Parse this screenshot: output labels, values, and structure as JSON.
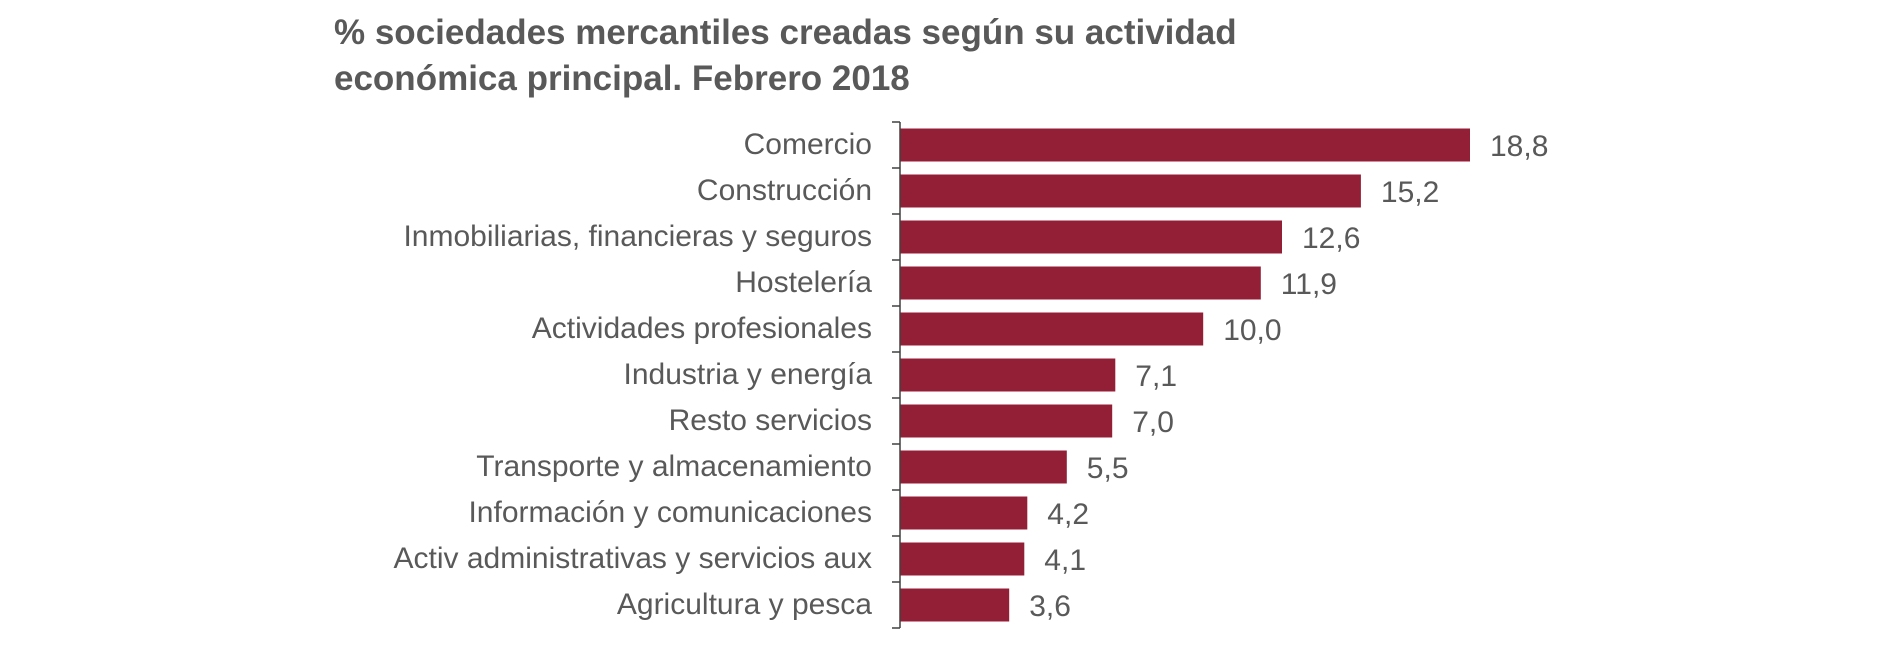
{
  "chart_data": {
    "type": "bar",
    "orientation": "horizontal",
    "title": "% sociedades mercantiles creadas según su actividad\neconómica principal. Febrero 2018",
    "xlabel": "",
    "ylabel": "",
    "xlim": [
      0,
      20
    ],
    "grid": false,
    "legend": "none",
    "bar_color": "#931F37",
    "text_color": "#595959",
    "axis_color": "#404040",
    "categories": [
      "Comercio",
      "Construcción ",
      "Inmobiliarias, financieras y seguros",
      "Hostelería",
      "Actividades profesionales",
      "Industria y energía",
      "Resto servicios",
      "Transporte y almacenamiento",
      "Información y comunicaciones",
      "Activ administrativas y servicios aux",
      "Agricultura y pesca"
    ],
    "values": [
      18.8,
      15.2,
      12.6,
      11.9,
      10.0,
      7.1,
      7.0,
      5.5,
      4.2,
      4.1,
      3.6
    ],
    "value_labels": [
      "18,8",
      "15,2",
      "12,6",
      "11,9",
      "10,0",
      "7,1",
      "7,0",
      "5,5",
      "4,2",
      "4,1",
      "3,6"
    ]
  }
}
